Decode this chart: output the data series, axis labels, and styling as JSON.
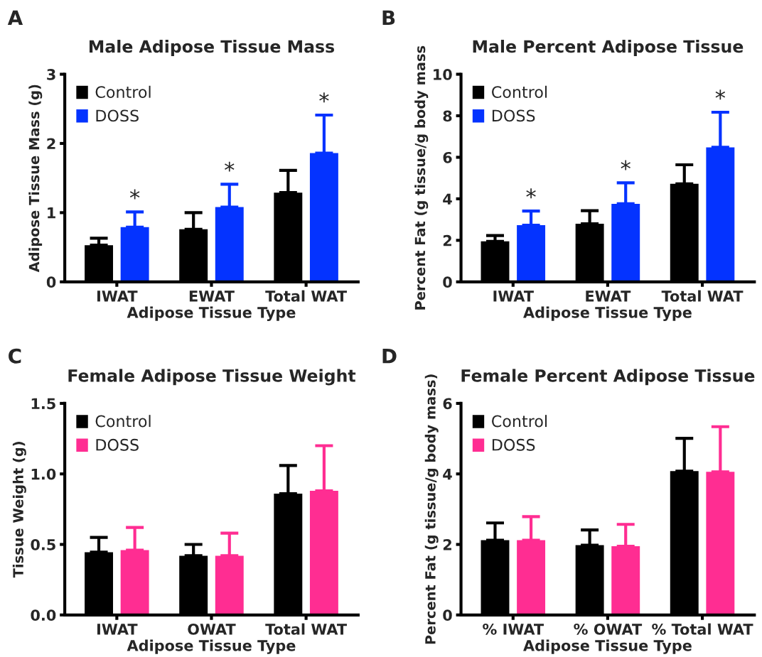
{
  "chart_data": [
    {
      "type": "bar",
      "title": "Male Adipose Tissue Mass",
      "xlabel": "Adipose Tissue Type",
      "ylabel": "Adipose Tissue Mass (g)",
      "categories": [
        "IWAT",
        "EWAT",
        "Total WAT"
      ],
      "series": [
        {
          "name": "Control",
          "color": "#000000",
          "values": [
            0.53,
            0.76,
            1.29
          ],
          "errors": [
            [
              0.53,
              0.63
            ],
            [
              0.76,
              1.0
            ],
            [
              1.29,
              1.61
            ]
          ]
        },
        {
          "name": "DOSS",
          "color": "#0433ff",
          "values": [
            0.79,
            1.08,
            1.86
          ],
          "errors": [
            [
              0.79,
              1.01
            ],
            [
              1.08,
              1.41
            ],
            [
              1.86,
              2.41
            ]
          ]
        }
      ],
      "ylim": [
        0,
        3
      ],
      "yticks": [
        0,
        1,
        2,
        3
      ],
      "legend": "top left",
      "annotations": [
        "A",
        "*",
        "*",
        "*"
      ]
    },
    {
      "type": "bar",
      "title": "Male Percent Adipose Tissue",
      "xlabel": "Adipose Tissue Type",
      "ylabel": "Percent Fat (g tissue/g body mass",
      "categories": [
        "IWAT",
        "EWAT",
        "Total WAT"
      ],
      "series": [
        {
          "name": "Control",
          "color": "#000000",
          "values": [
            1.95,
            2.8,
            4.72
          ],
          "errors": [
            [
              1.95,
              2.23
            ],
            [
              2.8,
              3.43
            ],
            [
              4.72,
              5.64
            ]
          ]
        },
        {
          "name": "DOSS",
          "color": "#0433ff",
          "values": [
            2.73,
            3.76,
            6.48
          ],
          "errors": [
            [
              2.73,
              3.41
            ],
            [
              3.76,
              4.77
            ],
            [
              6.48,
              8.17
            ]
          ]
        }
      ],
      "ylim": [
        0,
        10
      ],
      "yticks": [
        0,
        2,
        4,
        6,
        8,
        10
      ],
      "legend": "top left",
      "annotations": [
        "B",
        "*",
        "*",
        "*"
      ]
    },
    {
      "type": "bar",
      "title": "Female Adipose Tissue Weight",
      "xlabel": "Adipose Tissue Type",
      "ylabel": "Tissue Weight (g)",
      "categories": [
        "IWAT",
        "OWAT",
        "Total WAT"
      ],
      "series": [
        {
          "name": "Control",
          "color": "#000000",
          "values": [
            0.445,
            0.42,
            0.86
          ],
          "errors": [
            [
              0.445,
              0.55
            ],
            [
              0.42,
              0.5
            ],
            [
              0.86,
              1.06
            ]
          ]
        },
        {
          "name": "DOSS",
          "color": "#ff2d92",
          "values": [
            0.46,
            0.42,
            0.88
          ],
          "errors": [
            [
              0.46,
              0.62
            ],
            [
              0.42,
              0.58
            ],
            [
              0.88,
              1.2
            ]
          ]
        }
      ],
      "ylim": [
        0,
        1.5
      ],
      "yticks": [
        {
          "value": 0,
          "label": "0.0"
        },
        0.5,
        {
          "value": 1,
          "label": "1.0"
        },
        1.5
      ],
      "legend": "top left",
      "annotations": [
        "C"
      ]
    },
    {
      "type": "bar",
      "title": "Female Percent Adipose Tissue",
      "xlabel": "Adipose Tissue Type",
      "ylabel": "Percent Fat (g tissue/g body mass)",
      "categories": [
        "% IWAT",
        "% OWAT",
        "% Total WAT"
      ],
      "series": [
        {
          "name": "Control",
          "color": "#000000",
          "values": [
            2.12,
            1.98,
            4.08
          ],
          "errors": [
            [
              2.12,
              2.61
            ],
            [
              1.98,
              2.41
            ],
            [
              4.08,
              5.01
            ]
          ]
        },
        {
          "name": "DOSS",
          "color": "#ff2d92",
          "values": [
            2.12,
            1.95,
            4.06
          ],
          "errors": [
            [
              2.12,
              2.79
            ],
            [
              1.95,
              2.57
            ],
            [
              4.06,
              5.34
            ]
          ]
        }
      ],
      "ylim": [
        0,
        6
      ],
      "yticks": [
        0,
        2,
        4,
        6
      ],
      "legend": "top left",
      "annotations": [
        "D"
      ]
    }
  ]
}
